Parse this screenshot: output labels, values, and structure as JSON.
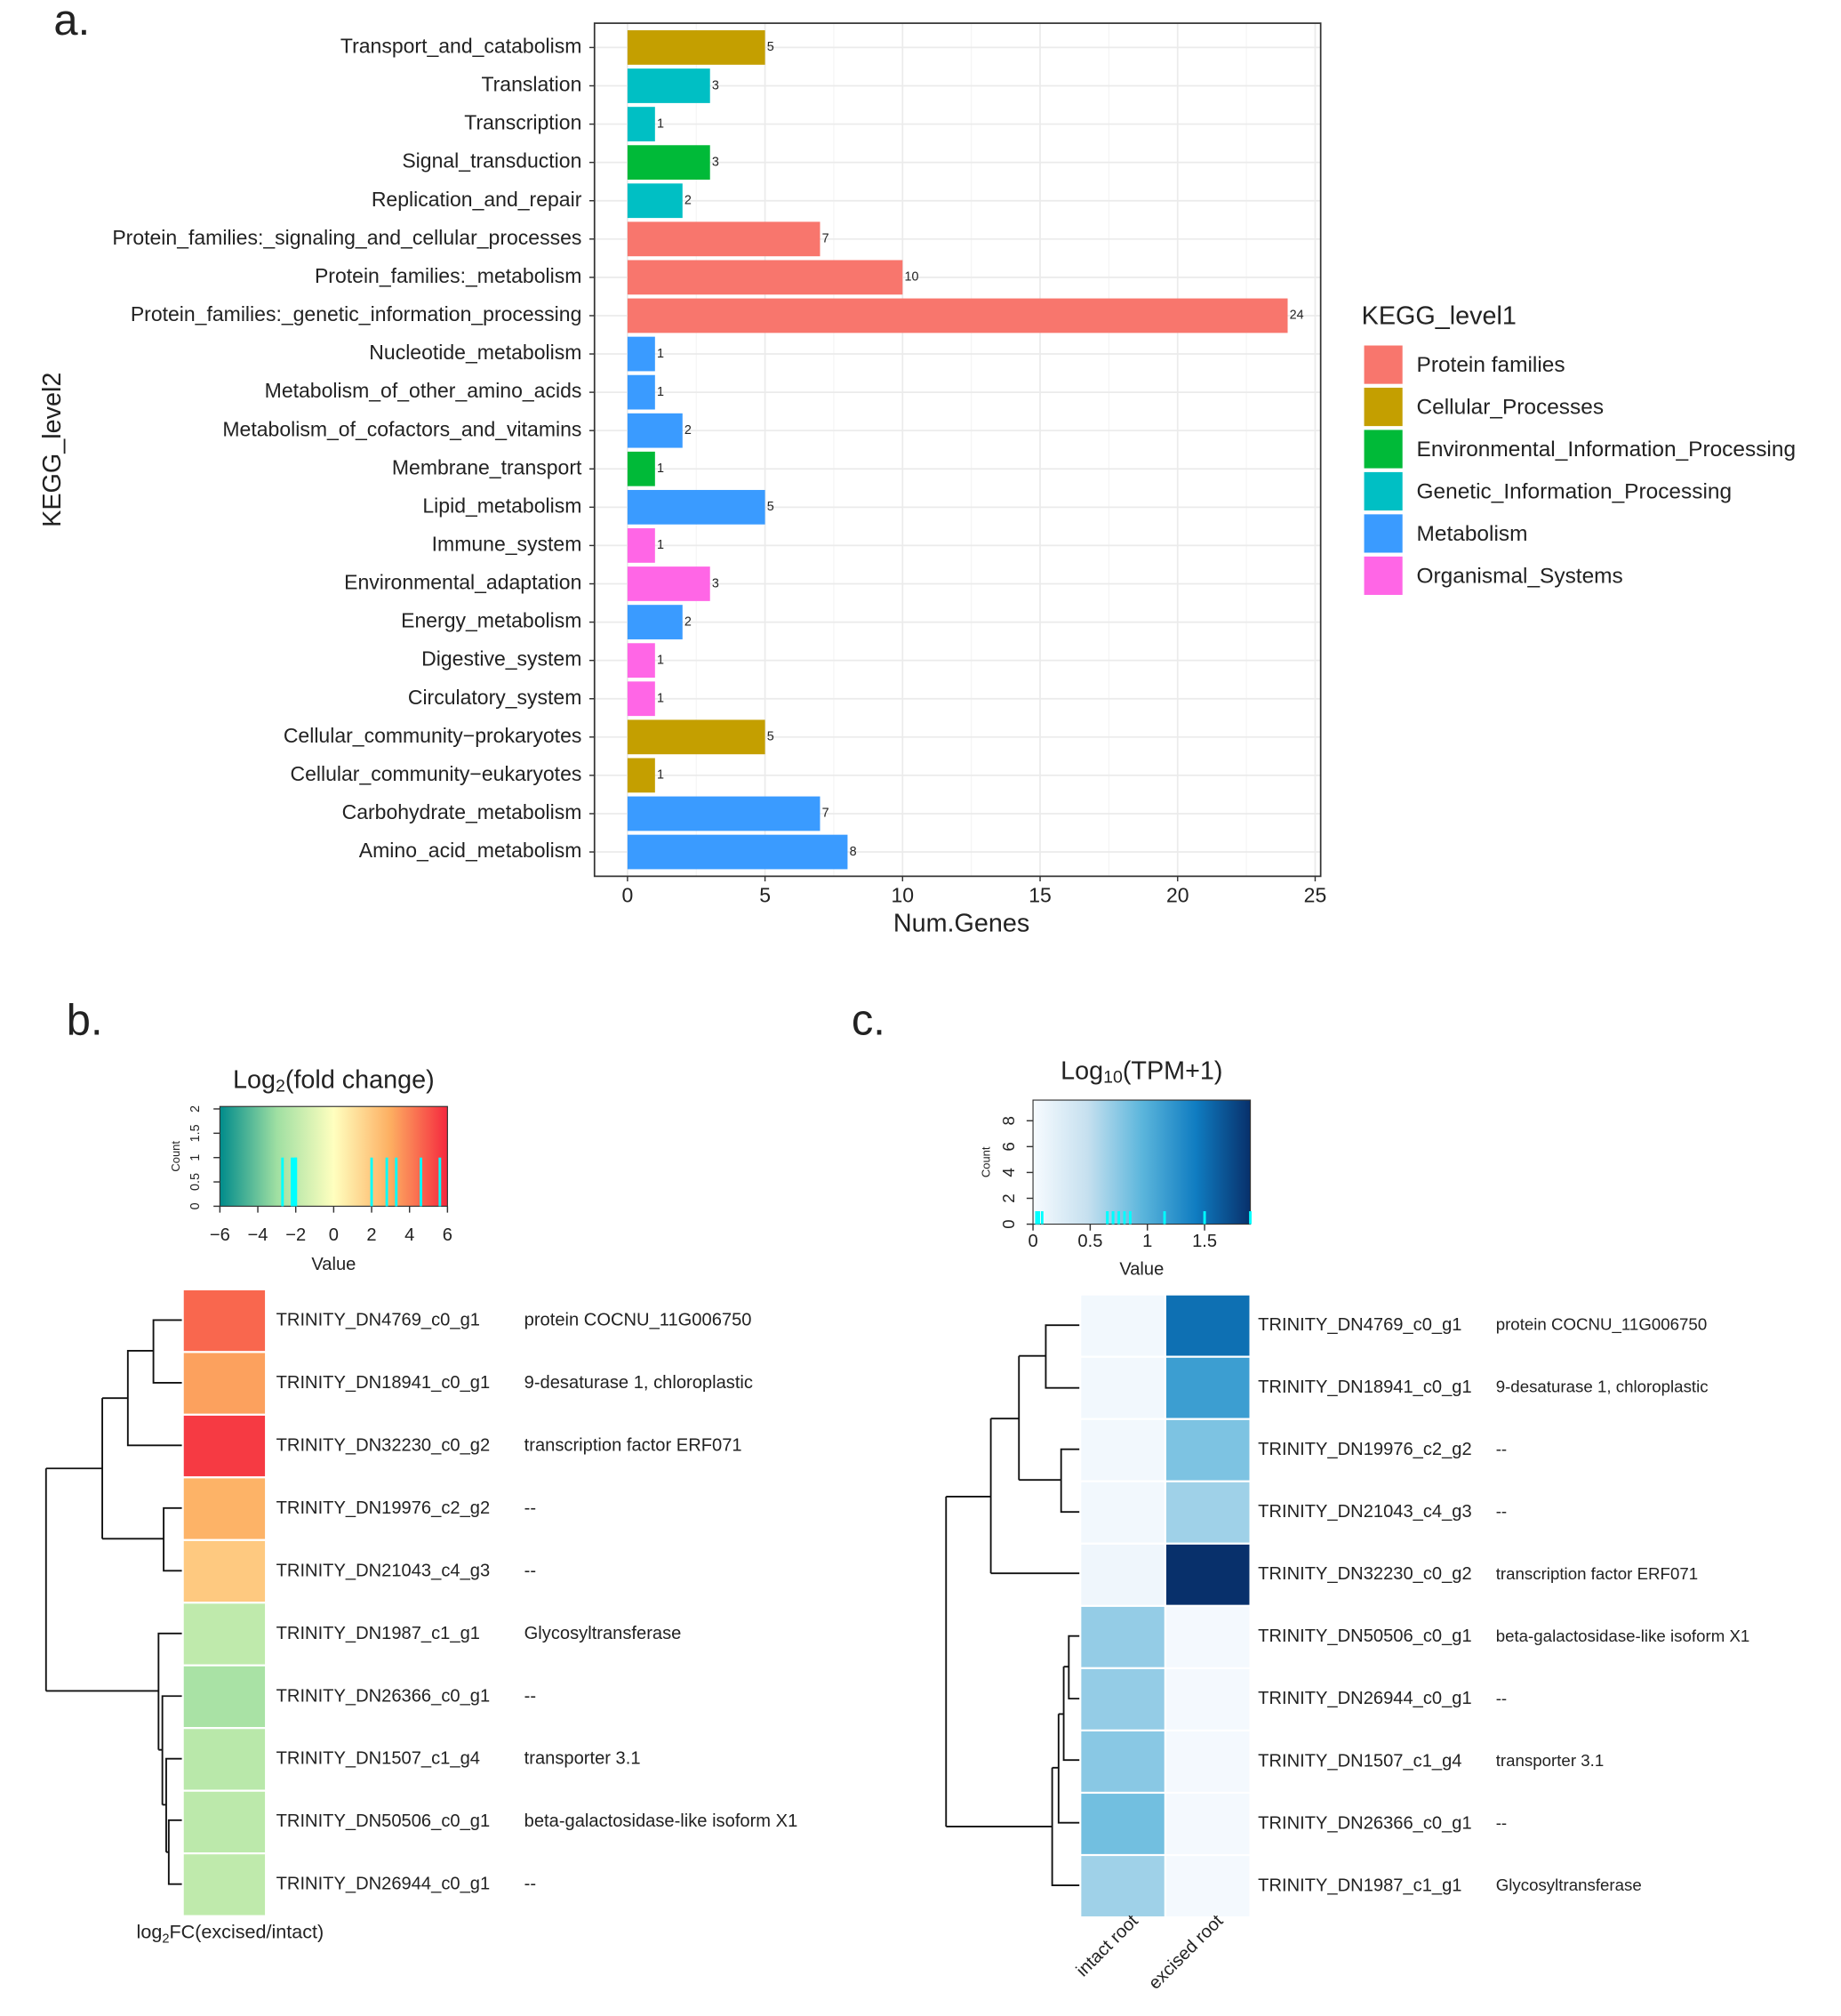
{
  "chart_data": [
    {
      "type": "bar",
      "label": "a.",
      "orientation": "horizontal",
      "categories": [
        "Transport_and_catabolism",
        "Translation",
        "Transcription",
        "Signal_transduction",
        "Replication_and_repair",
        "Protein_families:_signaling_and_cellular_processes",
        "Protein_families:_metabolism",
        "Protein_families:_genetic_information_processing",
        "Nucleotide_metabolism",
        "Metabolism_of_other_amino_acids",
        "Metabolism_of_cofactors_and_vitamins",
        "Membrane_transport",
        "Lipid_metabolism",
        "Immune_system",
        "Environmental_adaptation",
        "Energy_metabolism",
        "Digestive_system",
        "Circulatory_system",
        "Cellular_community−prokaryotes",
        "Cellular_community−eukaryotes",
        "Carbohydrate_metabolism",
        "Amino_acid_metabolism"
      ],
      "series": [
        {
          "name": "Protein families",
          "color": "#f8766d",
          "values": [
            null,
            null,
            null,
            null,
            null,
            7,
            10,
            24,
            null,
            null,
            null,
            null,
            null,
            null,
            null,
            null,
            null,
            null,
            null,
            null,
            null,
            null
          ]
        },
        {
          "name": "Cellular_Processes",
          "color": "#c49f00",
          "values": [
            5,
            null,
            null,
            null,
            null,
            null,
            null,
            null,
            null,
            null,
            null,
            null,
            null,
            null,
            null,
            null,
            null,
            null,
            5,
            1,
            null,
            null
          ]
        },
        {
          "name": "Environmental_Information_Processing",
          "color": "#00ba38",
          "values": [
            null,
            null,
            null,
            3,
            null,
            null,
            null,
            null,
            null,
            null,
            null,
            1,
            null,
            null,
            null,
            null,
            null,
            null,
            null,
            null,
            null,
            null
          ]
        },
        {
          "name": "Genetic_Information_Processing",
          "color": "#00bfc4",
          "values": [
            null,
            3,
            1,
            null,
            2,
            null,
            null,
            null,
            null,
            null,
            null,
            null,
            null,
            null,
            null,
            null,
            null,
            null,
            null,
            null,
            null,
            null
          ]
        },
        {
          "name": "Metabolism",
          "color": "#3a9bff",
          "values": [
            null,
            null,
            null,
            null,
            null,
            null,
            null,
            null,
            1,
            1,
            2,
            null,
            5,
            null,
            null,
            2,
            null,
            null,
            null,
            null,
            7,
            8
          ]
        },
        {
          "name": "Organismal_Systems",
          "color": "#ff66e6",
          "values": [
            null,
            null,
            null,
            null,
            null,
            null,
            null,
            null,
            null,
            null,
            null,
            null,
            null,
            1,
            3,
            null,
            1,
            1,
            null,
            null,
            null,
            null
          ]
        }
      ],
      "xlabel": "Num.Genes",
      "ylabel": "KEGG_level2",
      "legend_title": "KEGG_level1",
      "legend": "right",
      "xlim": [
        -1.2,
        25.2
      ],
      "xticks": [
        0,
        5,
        10,
        15,
        20,
        25
      ],
      "grid": true
    },
    {
      "type": "heatmap",
      "label": "b.",
      "title_parts": [
        "Log",
        "2",
        "(fold change)"
      ],
      "key": {
        "colors": [
          "#008b8b",
          "#9fdfa2",
          "#ffffbf",
          "#fdae61",
          "#f5283e"
        ],
        "xlim": [
          -6,
          6
        ],
        "xticks": [
          {
            "value": -6,
            "label": "−6"
          },
          {
            "value": -4,
            "label": "−4"
          },
          {
            "value": -2,
            "label": "−2"
          },
          0,
          2,
          4,
          6
        ],
        "ylim": [
          0,
          2.05
        ],
        "yticks": [
          0,
          0.5,
          1,
          1.5,
          2
        ],
        "xlabel": "Value",
        "ylabel": "Count"
      },
      "rows": [
        "TRINITY_DN4769_c0_g1",
        "TRINITY_DN18941_c0_g1",
        "TRINITY_DN32230_c0_g2",
        "TRINITY_DN19976_c2_g2",
        "TRINITY_DN21043_c4_g3",
        "TRINITY_DN1987_c1_g1",
        "TRINITY_DN26366_c0_g1",
        "TRINITY_DN1507_c1_g4",
        "TRINITY_DN50506_c0_g1",
        "TRINITY_DN26944_c0_g1"
      ],
      "annotations": [
        "protein COCNU_11G006750",
        "9-desaturase 1, chloroplastic",
        "transcription factor ERF071",
        "--",
        "--",
        "Glycosyltransferase",
        "--",
        "transporter 3.1",
        "beta-galactosidase-like isoform X1",
        "--"
      ],
      "series": [
        {
          "name_parts": [
            "log",
            "2",
            "FC(excised/intact)"
          ],
          "values": [
            4.6,
            3.3,
            5.6,
            2.8,
            2.0,
            -2.0,
            -2.7,
            -2.2,
            -2.1,
            -2.0
          ]
        }
      ]
    },
    {
      "type": "heatmap",
      "label": "c.",
      "title_parts": [
        "Log",
        "10",
        "(TPM+1)"
      ],
      "key": {
        "colors": [
          "#f7fbff",
          "#c6e0ef",
          "#5cb6dc",
          "#0f7cc1",
          "#08306b"
        ],
        "xlim": [
          0,
          1.9
        ],
        "xticks": [
          0,
          0.5,
          1,
          1.5
        ],
        "ylim": [
          0,
          9.6
        ],
        "yticks": [
          0,
          2,
          4,
          6,
          8
        ],
        "xlabel": "Value",
        "ylabel": "Count"
      },
      "rows": [
        "TRINITY_DN4769_c0_g1",
        "TRINITY_DN18941_c0_g1",
        "TRINITY_DN19976_c2_g2",
        "TRINITY_DN21043_c4_g3",
        "TRINITY_DN32230_c0_g2",
        "TRINITY_DN50506_c0_g1",
        "TRINITY_DN26944_c0_g1",
        "TRINITY_DN1507_c1_g4",
        "TRINITY_DN26366_c0_g1",
        "TRINITY_DN1987_c1_g1"
      ],
      "annotations": [
        "protein COCNU_11G006750",
        "9-desaturase 1, chloroplastic",
        "--",
        "--",
        "transcription factor ERF071",
        "beta-galactosidase-like isoform X1",
        "--",
        "transporter 3.1",
        "--",
        "Glycosyltransferase"
      ],
      "series": [
        {
          "name": "intact root",
          "values": [
            0.05,
            0.05,
            0.05,
            0.05,
            0.08,
            0.7,
            0.7,
            0.75,
            0.85,
            0.65
          ]
        },
        {
          "name": "excised root",
          "values": [
            1.5,
            1.15,
            0.8,
            0.65,
            1.9,
            0.03,
            0.03,
            0.03,
            0.03,
            0.03
          ]
        }
      ]
    }
  ]
}
